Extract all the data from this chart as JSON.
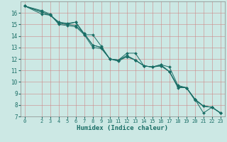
{
  "xlabel": "Humidex (Indice chaleur)",
  "bg_color": "#cce8e4",
  "grid_color_h": "#cc9999",
  "grid_color_v": "#cc9999",
  "line_color": "#1a6e66",
  "marker_color": "#1a6e66",
  "xlim": [
    -0.5,
    23.5
  ],
  "ylim": [
    7,
    17
  ],
  "xticks": [
    0,
    2,
    3,
    4,
    5,
    6,
    7,
    8,
    9,
    10,
    11,
    12,
    13,
    14,
    15,
    16,
    17,
    18,
    19,
    20,
    21,
    22,
    23
  ],
  "yticks": [
    7,
    8,
    9,
    10,
    11,
    12,
    13,
    14,
    15,
    16
  ],
  "series": [
    {
      "x": [
        0,
        2,
        3,
        4,
        5,
        6,
        7,
        8,
        9,
        10,
        11,
        12,
        13,
        14,
        15,
        16,
        17,
        18,
        19,
        20,
        21,
        22,
        23
      ],
      "y": [
        16.6,
        16.2,
        15.9,
        15.0,
        14.9,
        14.8,
        14.1,
        13.0,
        12.9,
        12.0,
        11.9,
        12.5,
        12.5,
        11.4,
        11.3,
        11.5,
        11.3,
        9.7,
        9.5,
        8.5,
        7.3,
        7.8,
        7.3
      ]
    },
    {
      "x": [
        0,
        2,
        3,
        4,
        5,
        6,
        7,
        8,
        9,
        10,
        11,
        12,
        13,
        14,
        15,
        16,
        17,
        18,
        19,
        20,
        21,
        22,
        23
      ],
      "y": [
        16.6,
        16.1,
        15.8,
        15.2,
        15.0,
        15.2,
        14.2,
        13.2,
        13.0,
        12.0,
        11.9,
        12.2,
        11.9,
        11.4,
        11.3,
        11.4,
        10.9,
        9.6,
        9.5,
        8.5,
        7.9,
        7.8,
        7.3
      ]
    },
    {
      "x": [
        0,
        2,
        3,
        4,
        5,
        6,
        7,
        8,
        9,
        10,
        11,
        12,
        13,
        14,
        15,
        16,
        17,
        18,
        19,
        20,
        21,
        22,
        23
      ],
      "y": [
        16.6,
        15.9,
        15.8,
        15.1,
        15.0,
        14.9,
        14.2,
        13.2,
        13.0,
        12.0,
        11.8,
        12.2,
        11.9,
        11.4,
        11.3,
        11.5,
        10.9,
        9.6,
        9.5,
        8.5,
        7.9,
        7.8,
        7.3
      ]
    },
    {
      "x": [
        0,
        3,
        4,
        5,
        6,
        7,
        8,
        9,
        10,
        11,
        12,
        13,
        14,
        15,
        16,
        17,
        18,
        19,
        20,
        21,
        22,
        23
      ],
      "y": [
        16.6,
        15.8,
        15.2,
        15.1,
        15.2,
        14.1,
        14.1,
        13.1,
        12.0,
        11.9,
        12.3,
        11.9,
        11.4,
        11.3,
        11.4,
        10.9,
        9.5,
        9.5,
        8.4,
        7.9,
        7.8,
        7.3
      ]
    }
  ]
}
